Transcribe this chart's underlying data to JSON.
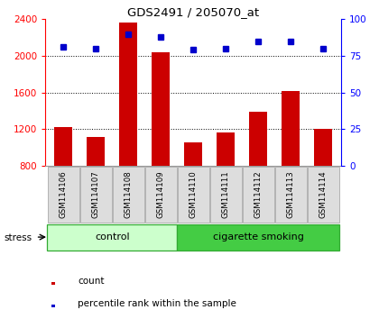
{
  "title": "GDS2491 / 205070_at",
  "samples": [
    "GSM114106",
    "GSM114107",
    "GSM114108",
    "GSM114109",
    "GSM114110",
    "GSM114111",
    "GSM114112",
    "GSM114113",
    "GSM114114"
  ],
  "counts": [
    1220,
    1120,
    2360,
    2040,
    1060,
    1160,
    1390,
    1620,
    1200
  ],
  "percentile_ranks": [
    81,
    80,
    90,
    88,
    79,
    80,
    85,
    85,
    80
  ],
  "ylim_left": [
    800,
    2400
  ],
  "ylim_right": [
    0,
    100
  ],
  "yticks_left": [
    800,
    1200,
    1600,
    2000,
    2400
  ],
  "yticks_right": [
    0,
    25,
    50,
    75,
    100
  ],
  "bar_color": "#cc0000",
  "dot_color": "#0000cc",
  "legend_count": "count",
  "legend_percentile": "percentile rank within the sample",
  "control_label": "control",
  "smoking_label": "cigarette smoking",
  "stress_label": "stress",
  "control_color_light": "#ccffcc",
  "smoking_color": "#44cc44",
  "box_color": "#dddddd",
  "box_edge_color": "#aaaaaa",
  "grid_color": "#000000",
  "spine_bottom_color": "#999999",
  "group_edge_color": "#33aa33"
}
